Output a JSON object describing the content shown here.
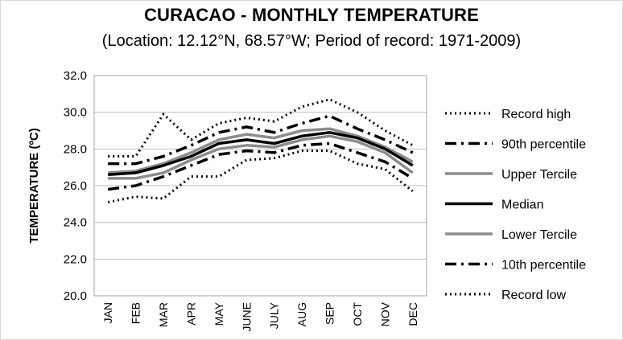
{
  "chart_data": {
    "type": "line",
    "title": "CURACAO - MONTHLY TEMPERATURE",
    "subtitle": "(Location: 12.12°N, 68.57°W; Period of record: 1971-2009)",
    "xlabel": "",
    "ylabel": "TEMPERATURE (ºC)",
    "ylim": [
      20,
      32
    ],
    "ytick_labels": [
      "20.0",
      "22.0",
      "24.0",
      "26.0",
      "28.0",
      "30.0",
      "32.0"
    ],
    "categories": [
      "JAN",
      "FEB",
      "MAR",
      "APR",
      "MAY",
      "JUNE",
      "JULY",
      "AUG",
      "SEP",
      "OCT",
      "NOV",
      "DEC"
    ],
    "grid": true,
    "legend_position": "right",
    "series": [
      {
        "name": "Record high",
        "style": "dotted",
        "color": "#000000",
        "width": 3,
        "values": [
          27.6,
          27.6,
          29.9,
          28.5,
          29.4,
          29.7,
          29.5,
          30.3,
          30.7,
          30.0,
          29.0,
          28.2
        ]
      },
      {
        "name": "90th percentile",
        "style": "dashdot",
        "color": "#000000",
        "width": 3.5,
        "values": [
          27.2,
          27.2,
          27.6,
          28.2,
          28.9,
          29.2,
          28.9,
          29.4,
          29.8,
          29.1,
          28.5,
          27.8
        ]
      },
      {
        "name": "Upper Tercile",
        "style": "solid",
        "color": "#8c8c8c",
        "width": 3.5,
        "values": [
          26.7,
          26.8,
          27.2,
          27.8,
          28.5,
          28.8,
          28.6,
          29.0,
          29.1,
          28.7,
          28.1,
          27.3
        ]
      },
      {
        "name": "Median",
        "style": "solid",
        "color": "#000000",
        "width": 3.5,
        "values": [
          26.6,
          26.7,
          27.1,
          27.6,
          28.3,
          28.5,
          28.3,
          28.7,
          28.9,
          28.6,
          28.0,
          27.1
        ]
      },
      {
        "name": "Lower Tercile",
        "style": "solid",
        "color": "#8c8c8c",
        "width": 3.5,
        "values": [
          26.4,
          26.4,
          26.7,
          27.4,
          28.0,
          28.2,
          28.1,
          28.5,
          28.7,
          28.4,
          27.8,
          26.7
        ]
      },
      {
        "name": "10th percentile",
        "style": "dashdot",
        "color": "#000000",
        "width": 3.5,
        "values": [
          25.8,
          26.0,
          26.5,
          27.1,
          27.7,
          27.9,
          27.8,
          28.2,
          28.3,
          27.8,
          27.3,
          26.4
        ]
      },
      {
        "name": "Record low",
        "style": "dotted",
        "color": "#000000",
        "width": 3,
        "values": [
          25.1,
          25.4,
          25.3,
          26.5,
          26.5,
          27.4,
          27.5,
          27.9,
          27.9,
          27.2,
          26.9,
          25.7
        ]
      }
    ]
  }
}
